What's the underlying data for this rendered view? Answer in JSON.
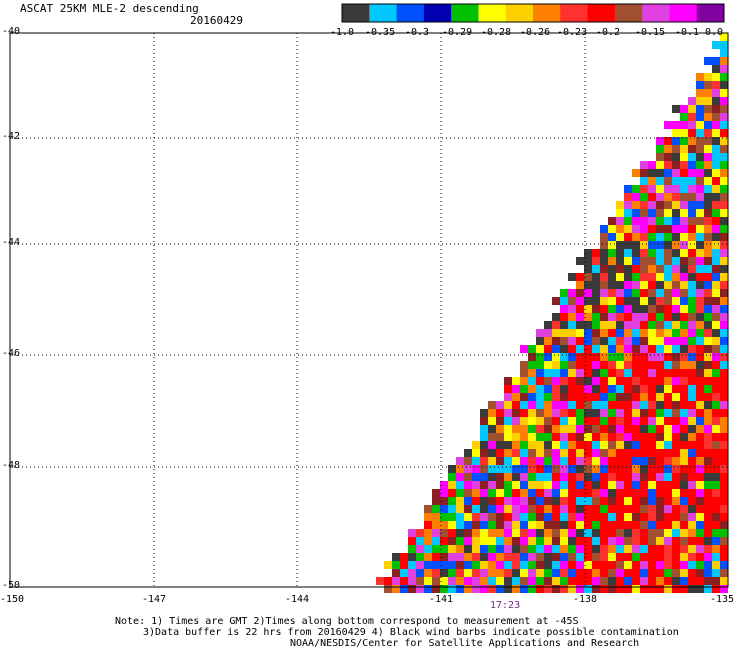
{
  "header": {
    "title": "ASCAT 25KM MLE-2 descending",
    "date": "20160429"
  },
  "colorbar": {
    "colors": [
      "#3a3a3a",
      "#00c8ff",
      "#0050ff",
      "#0000b0",
      "#00c000",
      "#ffff00",
      "#ffd000",
      "#ff8000",
      "#ff3030",
      "#ff0000",
      "#a05030",
      "#e040e0",
      "#ff00ff",
      "#8000a0"
    ],
    "tick_labels": [
      "-1.0",
      "-0.35",
      "-0.3",
      "-0.29",
      "-0.28",
      "-0.26",
      "-0.23",
      "-0.2",
      "-0.15",
      "-0.1",
      "0.0"
    ]
  },
  "axes": {
    "y_labels": [
      "-40",
      "-42",
      "-44",
      "-46",
      "-48",
      "-50"
    ],
    "x_labels": [
      "-150",
      "-147",
      "-144",
      "-141",
      "-138",
      "-135"
    ],
    "time_label": "17:23"
  },
  "notes": {
    "line1": "Note: 1) Times are GMT 2)Times along bottom correspond to measurement at -45S",
    "line2": "3)Data buffer is 22 hrs from 20160429 4) Black wind barbs indicate possible contamination",
    "credit": "NOAA/NESDIS/Center for Satellite Applications and Research"
  },
  "palette": {
    "cells": [
      "#ff0000",
      "#ff3030",
      "#ffd000",
      "#ffff00",
      "#e040e0",
      "#ff00ff",
      "#a05030",
      "#00c000",
      "#00c8ff",
      "#0050ff",
      "#3a3a3a",
      "#ff8000",
      "#8b2020"
    ]
  }
}
